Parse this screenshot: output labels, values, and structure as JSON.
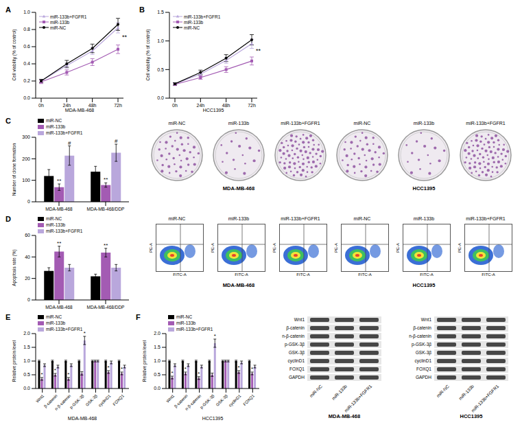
{
  "chart_data": [
    {
      "panel": "A",
      "type": "line",
      "x_label": "MDA-MB-468",
      "y_label": "Cell viability (% of control)",
      "categories": [
        "0h",
        "24h",
        "48h",
        "72h"
      ],
      "series": [
        {
          "name": "miR-133b+FGFR1",
          "color": "#b9a7dc",
          "marker": "triangle",
          "values": [
            0.2,
            0.38,
            0.55,
            0.82
          ],
          "errors": [
            0.02,
            0.03,
            0.04,
            0.06
          ]
        },
        {
          "name": "miR-133b",
          "color": "#a35bb3",
          "marker": "square",
          "values": [
            0.19,
            0.3,
            0.42,
            0.57
          ],
          "errors": [
            0.02,
            0.03,
            0.04,
            0.05
          ]
        },
        {
          "name": "miR-NC",
          "color": "#000000",
          "marker": "circle",
          "values": [
            0.2,
            0.4,
            0.58,
            0.86
          ],
          "errors": [
            0.02,
            0.04,
            0.05,
            0.07
          ]
        }
      ],
      "ylim": [
        0,
        1
      ],
      "yticks": [
        {
          "value": 0,
          "label": "0.0"
        },
        {
          "value": 0.2,
          "label": "0.2"
        },
        {
          "value": 0.4,
          "label": "0.4"
        },
        {
          "value": 0.6,
          "label": "0.6"
        },
        {
          "value": 0.8,
          "label": "0.8"
        },
        {
          "value": 1,
          "label": "1.0"
        }
      ],
      "legend": "top-left",
      "annotations": [
        {
          "text": "**",
          "x": "72h"
        }
      ]
    },
    {
      "panel": "B",
      "type": "line",
      "x_label": "HCC1395",
      "y_label": "Cell viability (% of control)",
      "categories": [
        "0h",
        "24h",
        "48h",
        "72h"
      ],
      "series": [
        {
          "name": "miR-133b+FGFR1",
          "color": "#b9a7dc",
          "marker": "triangle",
          "values": [
            0.25,
            0.42,
            0.66,
            0.95
          ],
          "errors": [
            0.02,
            0.04,
            0.05,
            0.08
          ]
        },
        {
          "name": "miR-133b",
          "color": "#a35bb3",
          "marker": "square",
          "values": [
            0.24,
            0.36,
            0.5,
            0.65
          ],
          "errors": [
            0.02,
            0.03,
            0.05,
            0.07
          ]
        },
        {
          "name": "miR-NC",
          "color": "#000000",
          "marker": "circle",
          "values": [
            0.25,
            0.45,
            0.7,
            1.02
          ],
          "errors": [
            0.02,
            0.04,
            0.06,
            0.09
          ]
        }
      ],
      "ylim": [
        0,
        1.5
      ],
      "yticks": [
        {
          "value": 0,
          "label": "0.0"
        },
        {
          "value": 0.5,
          "label": "0.5"
        },
        {
          "value": 1,
          "label": "1.0"
        },
        {
          "value": 1.5,
          "label": "1.5"
        }
      ],
      "legend": "top-left",
      "annotations": [
        {
          "text": "**",
          "x": "72h"
        }
      ]
    },
    {
      "panel": "C",
      "type": "bar",
      "y_label": "Number of clone formation",
      "categories": [
        "MDA-MB-468",
        "MDA-MB-468/DDP"
      ],
      "series": [
        {
          "name": "miR-NC",
          "color": "#000000",
          "values": [
            120,
            140
          ],
          "errors": [
            30,
            25
          ],
          "annotations": [
            null,
            null
          ]
        },
        {
          "name": "miR-133b",
          "color": "#a35bb3",
          "values": [
            68,
            78
          ],
          "errors": [
            15,
            10
          ],
          "annotations": [
            "**",
            "**"
          ]
        },
        {
          "name": "miR-133b+FGFR1",
          "color": "#b9a7dc",
          "values": [
            215,
            228
          ],
          "errors": [
            45,
            40
          ],
          "annotations": [
            "#",
            "#"
          ]
        }
      ],
      "ylim": [
        0,
        300
      ],
      "yticks": [
        0,
        100,
        200,
        300
      ],
      "legend": "top-left"
    },
    {
      "panel": "D",
      "type": "bar",
      "y_label": "Apoptosis rate (%)",
      "categories": [
        "MDA-MB-468",
        "MDA-MB-468/DDP"
      ],
      "series": [
        {
          "name": "miR-NC",
          "color": "#000000",
          "values": [
            27,
            22
          ],
          "errors": [
            3,
            2
          ],
          "annotations": [
            null,
            null
          ]
        },
        {
          "name": "miR-133b",
          "color": "#a35bb3",
          "values": [
            45,
            44
          ],
          "errors": [
            5,
            4
          ],
          "annotations": [
            "**",
            "**"
          ]
        },
        {
          "name": "miR-133b+FGFR1",
          "color": "#b9a7dc",
          "values": [
            30,
            30
          ],
          "errors": [
            3,
            3
          ],
          "annotations": [
            null,
            null
          ]
        }
      ],
      "ylim": [
        0,
        60
      ],
      "yticks": [
        0,
        20,
        40,
        60
      ],
      "legend": "top-left"
    },
    {
      "panel": "E",
      "type": "bar",
      "x_label": "MDA-MB-468",
      "y_label": "Relative protein level",
      "categories": [
        "Wnt1",
        "β-catenin",
        "n-β-catenin",
        "p-GSK-3β",
        "GSK-3β",
        "cyclinD1",
        "FOXQ1"
      ],
      "series": [
        {
          "name": "miR-NC",
          "color": "#000000",
          "values": [
            1,
            1,
            1,
            1,
            1,
            1,
            1
          ],
          "errors": [
            0.03,
            0.03,
            0.03,
            0.03,
            0.03,
            0.03,
            0.03
          ],
          "annotations": [
            null,
            null,
            null,
            null,
            null,
            null,
            null
          ]
        },
        {
          "name": "miR-133b",
          "color": "#a35bb3",
          "values": [
            0.35,
            0.5,
            0.35,
            0.55,
            1,
            0.6,
            0.55
          ],
          "errors": [
            0.05,
            0.05,
            0.05,
            0.06,
            0.03,
            0.05,
            0.05
          ],
          "annotations": [
            "*",
            "*",
            "*",
            null,
            null,
            "*",
            "*"
          ]
        },
        {
          "name": "miR-133b+FGFR1",
          "color": "#b9a7dc",
          "values": [
            0.85,
            0.8,
            0.85,
            1.75,
            1,
            0.95,
            0.8
          ],
          "errors": [
            0.05,
            0.05,
            0.05,
            0.15,
            0.03,
            0.05,
            0.05
          ],
          "annotations": [
            null,
            null,
            null,
            "*",
            null,
            null,
            null
          ]
        }
      ],
      "ylim": [
        0,
        2
      ],
      "yticks": [
        {
          "value": 0,
          "label": "0.0"
        },
        {
          "value": 0.5,
          "label": "0.5"
        },
        {
          "value": 1,
          "label": "1.0"
        },
        {
          "value": 1.5,
          "label": "1.5"
        },
        {
          "value": 2,
          "label": "2.0"
        }
      ],
      "legend": "top-left"
    },
    {
      "panel": "F",
      "type": "bar",
      "x_label": "HCC1395",
      "y_label": "Relative protein level",
      "categories": [
        "Wnt1",
        "β-catenin",
        "n-β-catenin",
        "p-GSK-3β",
        "GSK-3β",
        "cyclinD1",
        "FOXQ1"
      ],
      "series": [
        {
          "name": "miR-NC",
          "color": "#000000",
          "values": [
            1,
            1,
            1,
            1,
            1,
            1,
            1
          ],
          "errors": [
            0.03,
            0.03,
            0.03,
            0.03,
            0.03,
            0.03,
            0.03
          ],
          "annotations": [
            null,
            null,
            null,
            null,
            null,
            null,
            null
          ]
        },
        {
          "name": "miR-133b",
          "color": "#a35bb3",
          "values": [
            0.4,
            0.55,
            0.38,
            0.5,
            1,
            0.6,
            0.55
          ],
          "errors": [
            0.05,
            0.05,
            0.05,
            0.06,
            0.03,
            0.05,
            0.05
          ],
          "annotations": [
            "*",
            "*",
            "*",
            null,
            null,
            "*",
            "*"
          ]
        },
        {
          "name": "miR-133b+FGFR1",
          "color": "#b9a7dc",
          "values": [
            0.85,
            0.85,
            0.8,
            1.65,
            1,
            0.95,
            0.8
          ],
          "errors": [
            0.05,
            0.05,
            0.05,
            0.15,
            0.03,
            0.05,
            0.05
          ],
          "annotations": [
            null,
            null,
            null,
            "*",
            null,
            null,
            null
          ]
        }
      ],
      "ylim": [
        0,
        2
      ],
      "yticks": [
        {
          "value": 0,
          "label": "0.0"
        },
        {
          "value": 0.5,
          "label": "0.5"
        },
        {
          "value": 1,
          "label": "1.0"
        },
        {
          "value": 1.5,
          "label": "1.5"
        },
        {
          "value": 2,
          "label": "2.0"
        }
      ],
      "legend": "top-left"
    }
  ],
  "clone_images": {
    "groups": [
      {
        "name": "MDA-MB-468",
        "plates": [
          "miR-NC",
          "miR-133b",
          "miR-133b+FGFR1"
        ]
      },
      {
        "name": "HCC1395",
        "plates": [
          "miR-NC",
          "miR-133b",
          "miR-133b+FGFR1"
        ]
      }
    ]
  },
  "flow_plots": {
    "x_axis": "FITC-A",
    "y_axis": "PE-A",
    "groups": [
      {
        "name": "MDA-MB-468",
        "plots": [
          "miR-NC",
          "miR-133b",
          "miR-133b+FGFR1"
        ]
      },
      {
        "name": "HCC1395",
        "plots": [
          "miR-NC",
          "miR-133b",
          "miR-133b+FGFR1"
        ]
      }
    ]
  },
  "blots": {
    "rows": [
      "Wnt1",
      "β-catenin",
      "n-β-catenin",
      "p-GSK-3β",
      "GSK-3β",
      "cyclinD1",
      "FOXQ1",
      "GAPDH"
    ],
    "lanes": [
      "miR-NC",
      "miR-133b",
      "miR-133b+FGFR1"
    ],
    "groups": [
      "MDA-MB-468",
      "HCC1395"
    ]
  }
}
